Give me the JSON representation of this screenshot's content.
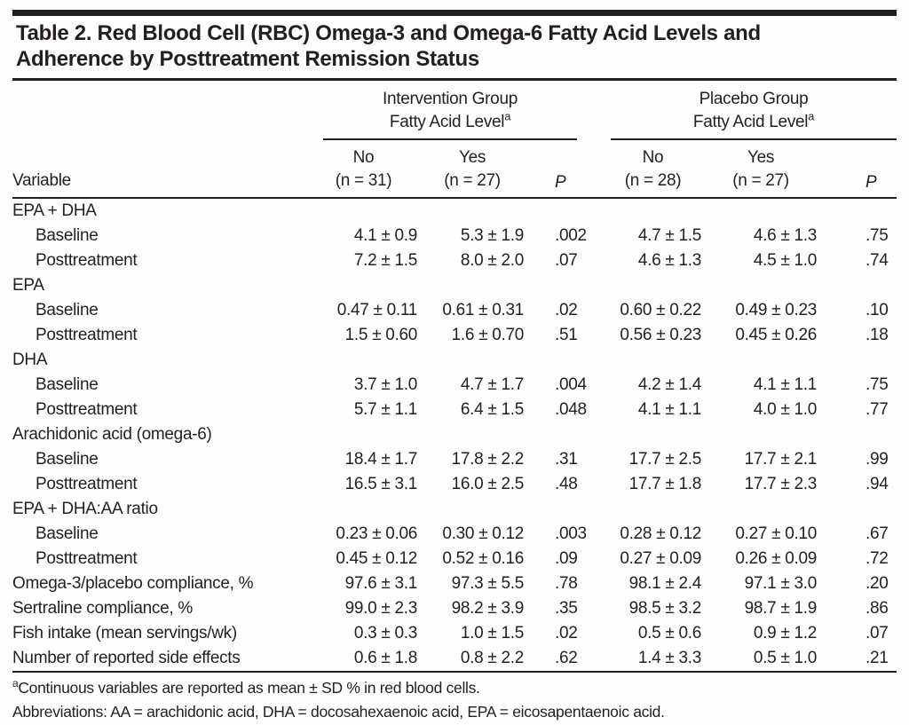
{
  "page": {
    "background": "#fefefe",
    "text_color": "#231f20",
    "rule_color": "#231f20"
  },
  "table": {
    "title_line1": "Table 2. Red Blood Cell (RBC) Omega-3 and Omega-6 Fatty Acid Levels and",
    "title_line2": "Adherence by Posttreatment Remission Status",
    "groups": [
      {
        "line1": "Intervention Group",
        "line2": "Fatty Acid Level",
        "sup": "a"
      },
      {
        "line1": "Placebo Group",
        "line2": "Fatty Acid Level",
        "sup": "a"
      }
    ],
    "columns": {
      "variable": "Variable",
      "int_no_line1": "No",
      "int_no_line2": "(n = 31)",
      "int_yes_line1": "Yes",
      "int_yes_line2": "(n = 27)",
      "int_p": "P",
      "pl_no_line1": "No",
      "pl_no_line2": "(n = 28)",
      "pl_yes_line1": "Yes",
      "pl_yes_line2": "(n = 27)",
      "pl_p": "P"
    },
    "rows": [
      {
        "label": "EPA + DHA",
        "indent": false,
        "cells": [
          "",
          "",
          "",
          "",
          "",
          ""
        ]
      },
      {
        "label": "Baseline",
        "indent": true,
        "cells": [
          "4.1 ± 0.9",
          "5.3 ± 1.9",
          ".002",
          "4.7 ± 1.5",
          "4.6 ± 1.3",
          ".75"
        ]
      },
      {
        "label": "Posttreatment",
        "indent": true,
        "cells": [
          "7.2 ± 1.5",
          "8.0 ± 2.0",
          ".07",
          "4.6 ± 1.3",
          "4.5 ± 1.0",
          ".74"
        ]
      },
      {
        "label": "EPA",
        "indent": false,
        "cells": [
          "",
          "",
          "",
          "",
          "",
          ""
        ]
      },
      {
        "label": "Baseline",
        "indent": true,
        "cells": [
          "0.47 ± 0.11",
          "0.61 ± 0.31",
          ".02",
          "0.60 ± 0.22",
          "0.49 ± 0.23",
          ".10"
        ]
      },
      {
        "label": "Posttreatment",
        "indent": true,
        "cells": [
          "1.5 ± 0.60",
          "1.6 ± 0.70",
          ".51",
          "0.56 ± 0.23",
          "0.45 ± 0.26",
          ".18"
        ]
      },
      {
        "label": "DHA",
        "indent": false,
        "cells": [
          "",
          "",
          "",
          "",
          "",
          ""
        ]
      },
      {
        "label": "Baseline",
        "indent": true,
        "cells": [
          "3.7 ± 1.0",
          "4.7 ± 1.7",
          ".004",
          "4.2 ± 1.4",
          "4.1 ± 1.1",
          ".75"
        ]
      },
      {
        "label": "Posttreatment",
        "indent": true,
        "cells": [
          "5.7 ± 1.1",
          "6.4 ± 1.5",
          ".048",
          "4.1 ± 1.1",
          "4.0 ± 1.0",
          ".77"
        ]
      },
      {
        "label": "Arachidonic acid (omega-6)",
        "indent": false,
        "cells": [
          "",
          "",
          "",
          "",
          "",
          ""
        ]
      },
      {
        "label": "Baseline",
        "indent": true,
        "cells": [
          "18.4 ± 1.7",
          "17.8 ± 2.2",
          ".31",
          "17.7 ± 2.5",
          "17.7 ± 2.1",
          ".99"
        ]
      },
      {
        "label": "Posttreatment",
        "indent": true,
        "cells": [
          "16.5 ± 3.1",
          "16.0 ± 2.5",
          ".48",
          "17.7 ± 1.8",
          "17.7 ± 2.3",
          ".94"
        ]
      },
      {
        "label": "EPA + DHA:AA ratio",
        "indent": false,
        "cells": [
          "",
          "",
          "",
          "",
          "",
          ""
        ]
      },
      {
        "label": "Baseline",
        "indent": true,
        "cells": [
          "0.23 ± 0.06",
          "0.30 ± 0.12",
          ".003",
          "0.28 ± 0.12",
          "0.27 ± 0.10",
          ".67"
        ]
      },
      {
        "label": "Posttreatment",
        "indent": true,
        "cells": [
          "0.45 ± 0.12",
          "0.52 ± 0.16",
          ".09",
          "0.27 ± 0.09",
          "0.26 ± 0.09",
          ".72"
        ]
      },
      {
        "label": "Omega-3/placebo compliance, %",
        "indent": false,
        "cells": [
          "97.6 ± 3.1",
          "97.3 ± 5.5",
          ".78",
          "98.1 ± 2.4",
          "97.1 ± 3.0",
          ".20"
        ]
      },
      {
        "label": "Sertraline compliance, %",
        "indent": false,
        "cells": [
          "99.0 ± 2.3",
          "98.2 ± 3.9",
          ".35",
          "98.5 ± 3.2",
          "98.7 ± 1.9",
          ".86"
        ]
      },
      {
        "label": "Fish intake (mean servings/wk)",
        "indent": false,
        "cells": [
          "0.3 ± 0.3",
          "1.0 ± 1.5",
          ".02",
          "0.5 ± 0.6",
          "0.9 ± 1.2",
          ".07"
        ]
      },
      {
        "label": "Number of reported side effects",
        "indent": false,
        "cells": [
          "0.6 ± 1.8",
          "0.8 ± 2.2",
          ".62",
          "1.4 ± 3.3",
          "0.5 ± 1.0",
          ".21"
        ]
      }
    ],
    "footnotes": {
      "sup": "a",
      "note_a": "Continuous variables are reported as mean ± SD % in red blood cells.",
      "abbreviations": "Abbreviations: AA = arachidonic acid, DHA = docosahexaenoic acid, EPA = eicosapentaenoic acid."
    }
  }
}
